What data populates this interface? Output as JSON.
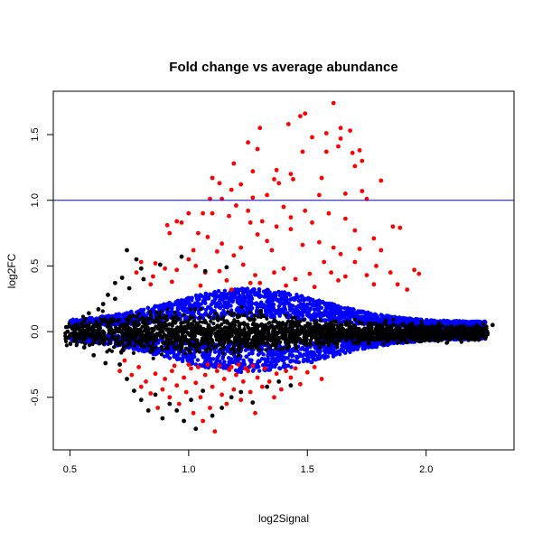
{
  "chart_data": {
    "type": "scatter",
    "title": "Fold change vs average abundance",
    "xlabel": "log2Signal",
    "ylabel": "log2FC",
    "xlim": [
      0.43,
      2.37
    ],
    "ylim": [
      -0.9,
      1.83
    ],
    "x_ticks": [
      0.5,
      1.0,
      1.5,
      2.0
    ],
    "x_tick_labels": [
      "0.5",
      "1.0",
      "1.5",
      "2.0"
    ],
    "y_ticks": [
      -0.5,
      0.0,
      0.5,
      1.0,
      1.5
    ],
    "y_tick_labels": [
      "-0.5",
      "0.0",
      "0.5",
      "1.0",
      "1.5"
    ],
    "hline": {
      "y": 1.0,
      "color": "#0000ff"
    },
    "colors": {
      "not_significant": "#000000",
      "significant_small_fc": "#0000ff",
      "significant_large_fc": "#ff0000"
    },
    "series": [
      {
        "color": "#ff0000",
        "points": [
          [
            1.3,
            1.55
          ],
          [
            1.47,
            1.64
          ],
          [
            1.49,
            1.66
          ],
          [
            1.52,
            1.48
          ],
          [
            1.61,
            1.74
          ],
          [
            1.63,
            1.41
          ],
          [
            1.64,
            1.55
          ],
          [
            1.64,
            1.47
          ],
          [
            1.68,
            1.53
          ],
          [
            1.72,
            1.38
          ],
          [
            1.73,
            1.3
          ],
          [
            1.69,
            1.36
          ],
          [
            1.58,
            1.51
          ],
          [
            1.48,
            1.37
          ],
          [
            1.58,
            1.37
          ],
          [
            1.42,
            1.58
          ],
          [
            1.25,
            1.44
          ],
          [
            1.29,
            1.39
          ],
          [
            1.27,
            1.22
          ],
          [
            1.19,
            1.28
          ],
          [
            1.56,
            1.17
          ],
          [
            1.36,
            1.16
          ],
          [
            1.37,
            1.23
          ],
          [
            1.43,
            1.2
          ],
          [
            1.44,
            1.16
          ],
          [
            1.38,
            1.13
          ],
          [
            1.81,
            1.15
          ],
          [
            1.7,
            1.26
          ],
          [
            1.55,
            1.04
          ],
          [
            1.66,
            1.05
          ],
          [
            1.73,
            1.07
          ],
          [
            1.75,
            1.01
          ],
          [
            1.1,
            1.17
          ],
          [
            1.13,
            1.13
          ],
          [
            1.18,
            1.08
          ],
          [
            1.22,
            1.12
          ],
          [
            1.09,
            1.01
          ],
          [
            1.14,
            1.01
          ],
          [
            1.27,
            1.02
          ],
          [
            1.33,
            1.04
          ],
          [
            1.06,
            0.9
          ],
          [
            1.1,
            0.9
          ],
          [
            0.95,
            0.84
          ],
          [
            0.97,
            0.83
          ],
          [
            1.0,
            0.9
          ],
          [
            1.04,
            0.75
          ],
          [
            1.08,
            0.72
          ],
          [
            1.17,
            0.88
          ],
          [
            1.2,
            0.96
          ],
          [
            1.25,
            0.92
          ],
          [
            1.26,
            0.83
          ],
          [
            1.31,
            0.84
          ],
          [
            1.37,
            0.8
          ],
          [
            1.4,
            0.95
          ],
          [
            1.43,
            0.87
          ],
          [
            1.49,
            0.92
          ],
          [
            1.52,
            0.83
          ],
          [
            1.59,
            0.9
          ],
          [
            1.66,
            0.86
          ],
          [
            1.7,
            0.77
          ],
          [
            1.78,
            0.71
          ],
          [
            1.86,
            0.8
          ],
          [
            1.89,
            0.79
          ],
          [
            1.43,
            0.78
          ],
          [
            1.29,
            0.74
          ],
          [
            1.33,
            0.69
          ],
          [
            1.14,
            0.67
          ],
          [
            0.91,
            0.81
          ],
          [
            0.92,
            0.75
          ],
          [
            1.02,
            0.62
          ],
          [
            1.12,
            0.61
          ],
          [
            1.19,
            0.58
          ],
          [
            1.22,
            0.64
          ],
          [
            1.35,
            0.62
          ],
          [
            1.48,
            0.66
          ],
          [
            1.55,
            0.68
          ],
          [
            1.61,
            0.64
          ],
          [
            1.64,
            0.59
          ],
          [
            1.72,
            0.63
          ],
          [
            1.81,
            0.62
          ],
          [
            1.85,
            0.45
          ],
          [
            1.88,
            0.36
          ],
          [
            1.92,
            0.32
          ],
          [
            1.95,
            0.47
          ],
          [
            1.97,
            0.44
          ],
          [
            0.78,
            0.45
          ],
          [
            0.8,
            0.53
          ],
          [
            0.85,
            0.42
          ],
          [
            0.86,
            0.52
          ],
          [
            0.9,
            0.48
          ],
          [
            0.95,
            0.47
          ],
          [
            1.0,
            0.55
          ],
          [
            1.03,
            0.5
          ],
          [
            1.07,
            0.45
          ],
          [
            1.13,
            0.46
          ],
          [
            1.16,
            0.39
          ],
          [
            1.23,
            0.51
          ],
          [
            1.28,
            0.43
          ],
          [
            1.3,
            0.37
          ],
          [
            1.36,
            0.45
          ],
          [
            1.4,
            0.48
          ],
          [
            1.45,
            0.4
          ],
          [
            1.51,
            0.44
          ],
          [
            1.57,
            0.53
          ],
          [
            1.6,
            0.45
          ],
          [
            1.66,
            0.42
          ],
          [
            1.7,
            0.53
          ],
          [
            1.75,
            0.43
          ],
          [
            1.79,
            0.5
          ],
          [
            0.84,
            0.36
          ],
          [
            0.93,
            0.38
          ],
          [
            1.05,
            0.35
          ],
          [
            1.18,
            0.32
          ],
          [
            1.26,
            0.37
          ],
          [
            1.41,
            0.35
          ],
          [
            1.53,
            0.34
          ],
          [
            1.63,
            0.39
          ],
          [
            1.78,
            0.36
          ],
          [
            0.71,
            -0.3
          ],
          [
            0.73,
            -0.22
          ],
          [
            0.76,
            -0.33
          ],
          [
            0.79,
            -0.27
          ],
          [
            0.8,
            -0.42
          ],
          [
            0.82,
            -0.38
          ],
          [
            0.84,
            -0.47
          ],
          [
            0.86,
            -0.32
          ],
          [
            0.87,
            -0.58
          ],
          [
            0.89,
            -0.44
          ],
          [
            0.9,
            -0.36
          ],
          [
            0.92,
            -0.5
          ],
          [
            0.93,
            -0.3
          ],
          [
            0.95,
            -0.41
          ],
          [
            0.96,
            -0.55
          ],
          [
            0.98,
            -0.35
          ],
          [
            0.99,
            -0.46
          ],
          [
            1.01,
            -0.28
          ],
          [
            1.02,
            -0.62
          ],
          [
            1.03,
            -0.39
          ],
          [
            1.05,
            -0.5
          ],
          [
            1.06,
            -0.68
          ],
          [
            1.07,
            -0.33
          ],
          [
            1.09,
            -0.58
          ],
          [
            1.1,
            -0.42
          ],
          [
            1.11,
            -0.76
          ],
          [
            1.12,
            -0.3
          ],
          [
            1.14,
            -0.48
          ],
          [
            1.15,
            -0.36
          ],
          [
            1.16,
            -0.55
          ],
          [
            1.18,
            -0.27
          ],
          [
            1.19,
            -0.44
          ],
          [
            1.2,
            -0.33
          ],
          [
            1.22,
            -0.52
          ],
          [
            1.23,
            -0.38
          ],
          [
            1.25,
            -0.3
          ],
          [
            1.26,
            -0.46
          ],
          [
            1.28,
            -0.62
          ],
          [
            1.29,
            -0.35
          ],
          [
            1.31,
            -0.42
          ],
          [
            1.32,
            -0.28
          ],
          [
            1.34,
            -0.38
          ],
          [
            1.36,
            -0.5
          ],
          [
            1.37,
            -0.32
          ],
          [
            1.39,
            -0.44
          ],
          [
            1.41,
            -0.3
          ],
          [
            1.43,
            -0.35
          ],
          [
            1.45,
            -0.28
          ],
          [
            1.47,
            -0.4
          ],
          [
            1.5,
            -0.31
          ],
          [
            1.53,
            -0.27
          ],
          [
            1.56,
            -0.36
          ],
          [
            0.94,
            -0.26
          ],
          [
            1.0,
            -0.25
          ],
          [
            1.04,
            -0.27
          ],
          [
            1.08,
            -0.25
          ],
          [
            1.13,
            -0.26
          ],
          [
            1.17,
            -0.29
          ],
          [
            1.21,
            -0.25
          ],
          [
            1.24,
            -0.28
          ],
          [
            1.27,
            -0.26
          ]
        ]
      },
      {
        "color": "#000000",
        "points": [
          [
            0.74,
            0.62
          ],
          [
            0.78,
            0.55
          ],
          [
            0.8,
            0.48
          ],
          [
            0.72,
            0.41
          ],
          [
            0.69,
            0.37
          ],
          [
            0.66,
            0.28
          ],
          [
            0.64,
            0.21
          ],
          [
            0.75,
            0.33
          ],
          [
            0.81,
            0.4
          ],
          [
            0.88,
            0.51
          ],
          [
            0.97,
            0.57
          ],
          [
            1.07,
            0.46
          ],
          [
            1.16,
            0.49
          ],
          [
            0.69,
            0.25
          ],
          [
            0.62,
            0.17
          ],
          [
            0.58,
            0.14
          ],
          [
            0.53,
            0.05
          ],
          [
            0.56,
            0.08
          ],
          [
            0.71,
            -0.25
          ],
          [
            0.74,
            -0.36
          ],
          [
            0.77,
            -0.45
          ],
          [
            0.8,
            -0.52
          ],
          [
            0.83,
            -0.6
          ],
          [
            0.86,
            -0.48
          ],
          [
            0.89,
            -0.66
          ],
          [
            0.92,
            -0.55
          ],
          [
            0.95,
            -0.6
          ],
          [
            0.98,
            -0.68
          ],
          [
            1.01,
            -0.52
          ],
          [
            1.03,
            -0.74
          ],
          [
            1.06,
            -0.45
          ],
          [
            1.1,
            -0.64
          ],
          [
            1.14,
            -0.58
          ],
          [
            1.18,
            -0.5
          ],
          [
            1.22,
            -0.46
          ],
          [
            1.27,
            -0.54
          ],
          [
            1.33,
            -0.42
          ],
          [
            1.38,
            -0.38
          ],
          [
            1.43,
            -0.41
          ],
          [
            0.65,
            -0.24
          ],
          [
            0.6,
            -0.18
          ],
          [
            0.56,
            -0.12
          ],
          [
            0.52,
            -0.07
          ],
          [
            0.5,
            -0.03
          ],
          [
            1.9,
            -0.05
          ],
          [
            2.0,
            0.02
          ],
          [
            2.1,
            -0.02
          ],
          [
            2.2,
            0.02
          ],
          [
            2.28,
            0.05
          ],
          [
            2.25,
            0.02
          ],
          [
            2.18,
            0.0
          ],
          [
            2.05,
            -0.03
          ],
          [
            1.95,
            0.0
          ],
          [
            0.49,
            0.0
          ],
          [
            0.51,
            0.03
          ]
        ]
      }
    ]
  }
}
